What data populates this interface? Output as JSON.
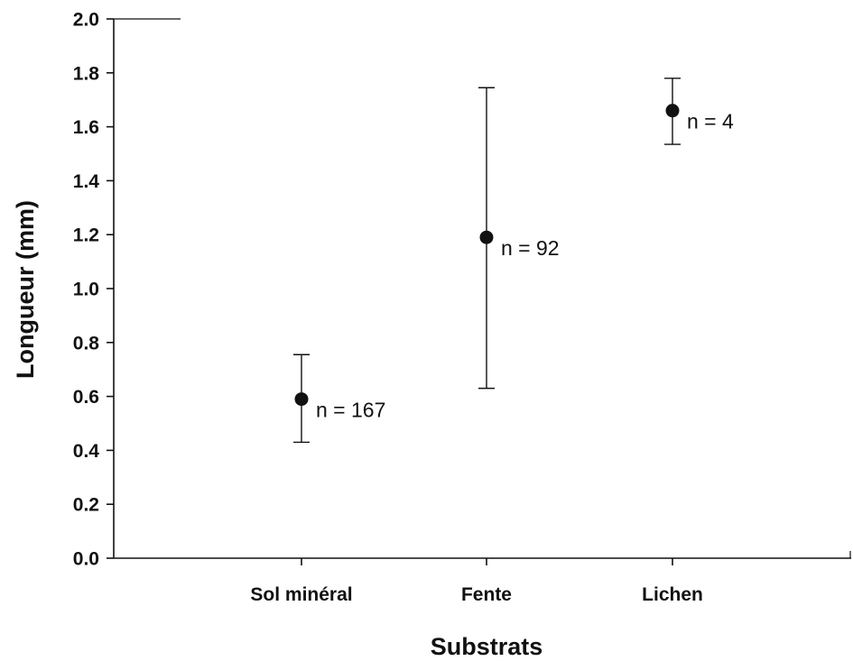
{
  "chart_data": {
    "type": "scatter",
    "categories": [
      "Sol minéral",
      "Fente",
      "Lichen"
    ],
    "series": [
      {
        "values": [
          0.59,
          1.19,
          1.66
        ],
        "error_low": [
          0.43,
          0.63,
          1.535
        ],
        "error_high": [
          0.755,
          1.745,
          1.78
        ],
        "annotations": [
          "n = 167",
          "n = 92",
          "n = 4"
        ]
      }
    ],
    "xlabel": "Substrats",
    "ylabel": "Longueur (mm)",
    "ylim": [
      0,
      2.0
    ],
    "yticks": [
      "0.0",
      "0.2",
      "0.4",
      "0.6",
      "0.8",
      "1.0",
      "1.2",
      "1.4",
      "1.6",
      "1.8",
      "2.0"
    ],
    "grid": false,
    "legend": "none",
    "colors": {
      "marker": "#111111",
      "axis": "#111111"
    }
  }
}
